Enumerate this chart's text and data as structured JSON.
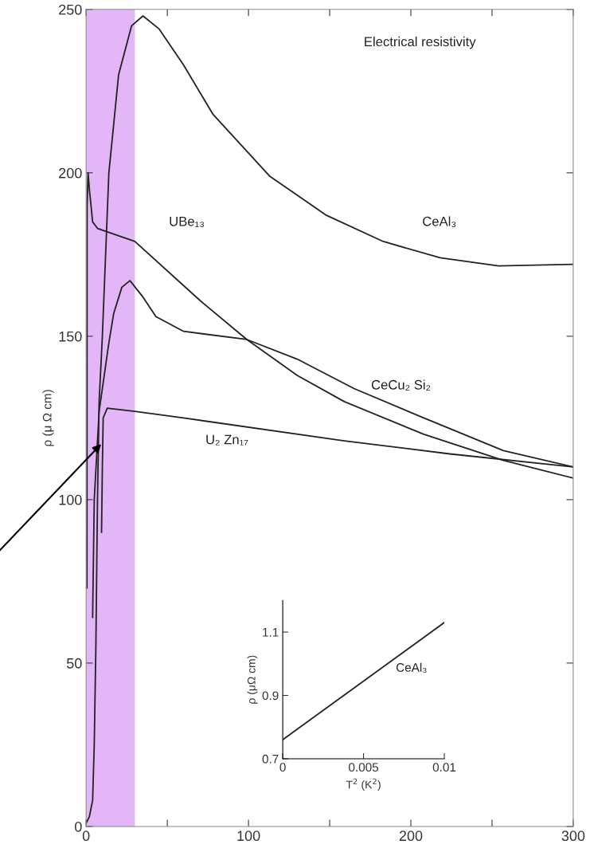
{
  "chart_data": [
    {
      "type": "line",
      "ylabel": "ρ (μ Ω cm)",
      "annotations": [
        "Electrical resistivity"
      ],
      "xlim": [
        0,
        300
      ],
      "xticks": [
        0,
        {
          "value": 50,
          "label": null
        },
        100,
        {
          "value": 150,
          "label": null
        },
        200,
        {
          "value": 250,
          "label": null
        },
        300
      ],
      "ylim": [
        0,
        250
      ],
      "yticks": [
        0,
        50,
        100,
        150,
        200,
        250
      ],
      "grid": false,
      "legend": false,
      "marker": "none",
      "line_style": "solid",
      "bands": [
        {
          "axis": "x",
          "from": 0,
          "to": 30,
          "color": "#e2b6f7"
        }
      ],
      "series": [
        {
          "name": "UBe₁₃",
          "color": "#222222",
          "x": [
            0.5,
            0.6,
            1.2,
            2,
            4,
            7,
            30,
            70,
            99,
            130,
            159,
            208,
            257,
            300
          ],
          "values": [
            73,
            190,
            200,
            195,
            185,
            183,
            179,
            161,
            149,
            138,
            130,
            120,
            112,
            106.6
          ]
        },
        {
          "name": "CeAl₃",
          "color": "#222222",
          "x": [
            0,
            2,
            4,
            5,
            6,
            7,
            8,
            10,
            14,
            20,
            28,
            35,
            45,
            60,
            78,
            113,
            148,
            183,
            218,
            254,
            300
          ],
          "values": [
            1,
            3,
            8,
            25,
            55,
            100,
            130,
            150,
            200,
            230,
            245,
            248,
            244,
            233,
            218,
            199,
            187,
            179,
            174,
            171.5,
            172
          ]
        },
        {
          "name": "CeCu₂ Si₂",
          "color": "#222222",
          "x": [
            4,
            5,
            8,
            14,
            17,
            22,
            27,
            35,
            43,
            60,
            99,
            130,
            165,
            208,
            257,
            300
          ],
          "values": [
            64,
            100,
            127,
            148,
            157,
            165,
            167,
            162,
            156,
            151.5,
            149,
            143,
            134,
            125,
            115,
            110
          ]
        },
        {
          "name": "U₂ Zn₁₇",
          "color": "#222222",
          "x": [
            9.5,
            10,
            10.5,
            13,
            30,
            60,
            159,
            224,
            300
          ],
          "values": [
            90,
            110,
            125,
            128,
            127,
            125,
            118,
            114,
            110
          ]
        }
      ]
    },
    {
      "type": "line",
      "xlabel": "T$^{2}$ (K$^{2}$)",
      "ylabel": "ρ (μΩ cm)",
      "xlim": [
        0,
        0.01
      ],
      "xticks": [
        0,
        0.005,
        0.01
      ],
      "ylim": [
        0.7,
        1.2
      ],
      "yticks": [
        0.7,
        0.9,
        1.1
      ],
      "grid": false,
      "legend": false,
      "marker": "none",
      "line_style": "solid",
      "series": [
        {
          "name": "CeAl₃",
          "color": "#222222",
          "x": [
            0,
            0.01
          ],
          "values": [
            0.76,
            1.13
          ]
        }
      ]
    }
  ]
}
